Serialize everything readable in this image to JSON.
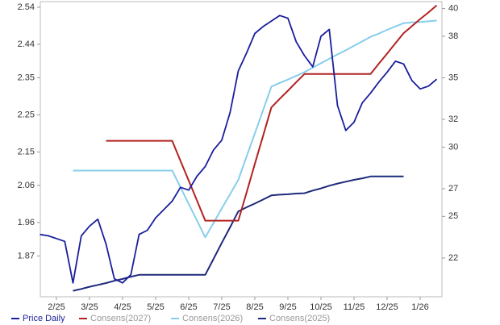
{
  "chart_data": {
    "type": "line",
    "categories": [
      null,
      null,
      "2/25",
      null,
      null,
      null,
      "3/25",
      null,
      null,
      null,
      "4/25",
      null,
      null,
      null,
      "5/25",
      null,
      null,
      null,
      "6/25",
      null,
      null,
      null,
      "7/25",
      null,
      null,
      null,
      "8/25",
      null,
      null,
      null,
      "9/25",
      null,
      null,
      null,
      "10/25",
      null,
      null,
      null,
      "11/25",
      null,
      null,
      null,
      "12/25",
      null,
      null,
      null,
      "1/26",
      null,
      null
    ],
    "series": [
      {
        "name": "Price Daily",
        "color": "#1a1f9c",
        "axis": "y2",
        "values": [
          23.7,
          23.6,
          23.4,
          23.2,
          20.2,
          23.6,
          24.3,
          24.8,
          23.0,
          20.5,
          20.2,
          20.8,
          23.7,
          24.0,
          24.9,
          25.5,
          26.1,
          27.1,
          26.9,
          27.9,
          28.6,
          29.8,
          30.5,
          32.5,
          35.5,
          36.8,
          38.2,
          38.7,
          39.1,
          39.5,
          39.3,
          37.6,
          36.6,
          35.8,
          38.0,
          38.5,
          33.0,
          31.2,
          31.8,
          33.2,
          33.9,
          34.7,
          35.4,
          36.2,
          36.0,
          34.8,
          34.2,
          34.4,
          34.9
        ]
      },
      {
        "name": "Consens(2027)",
        "color": "#b22222",
        "values": [
          null,
          null,
          null,
          null,
          null,
          null,
          null,
          null,
          2.18,
          2.18,
          2.18,
          2.18,
          2.18,
          2.18,
          2.18,
          2.18,
          2.18,
          2.126,
          2.073,
          2.019,
          1.965,
          1.965,
          1.965,
          1.965,
          1.965,
          2.041,
          2.118,
          2.194,
          2.27,
          2.293,
          2.315,
          2.338,
          2.36,
          2.36,
          2.36,
          2.36,
          2.36,
          2.36,
          2.36,
          2.36,
          2.36,
          2.388,
          2.415,
          2.443,
          2.47,
          2.489,
          2.508,
          2.526,
          2.545
        ]
      },
      {
        "name": "Consens(2026)",
        "color": "#87ceeb",
        "values": [
          null,
          null,
          null,
          null,
          2.1,
          2.1,
          2.1,
          2.1,
          2.1,
          2.1,
          2.1,
          2.1,
          2.1,
          2.1,
          2.1,
          2.1,
          2.1,
          2.055,
          2.01,
          1.965,
          1.92,
          1.959,
          1.998,
          2.036,
          2.075,
          2.138,
          2.2,
          2.263,
          2.326,
          2.336,
          2.345,
          2.355,
          2.365,
          2.377,
          2.389,
          2.401,
          2.413,
          2.424,
          2.436,
          2.448,
          2.46,
          2.469,
          2.479,
          2.488,
          2.497,
          2.499,
          2.5,
          2.502,
          2.504
        ]
      },
      {
        "name": "Consens(2025)",
        "color": "#1f2a7a",
        "values": [
          null,
          null,
          null,
          null,
          1.776,
          1.781,
          1.787,
          1.792,
          1.797,
          1.803,
          1.808,
          1.814,
          1.819,
          1.819,
          1.819,
          1.819,
          1.819,
          1.819,
          1.819,
          1.819,
          1.819,
          1.862,
          1.905,
          1.947,
          1.99,
          2.001,
          2.011,
          2.022,
          2.033,
          2.035,
          2.036,
          2.038,
          2.039,
          2.046,
          2.052,
          2.059,
          2.065,
          2.07,
          2.075,
          2.079,
          2.084,
          2.084,
          2.084,
          2.084,
          2.084,
          null,
          null,
          null,
          null
        ]
      }
    ],
    "ylim": [
      1.76,
      2.555
    ],
    "yticks": [
      1.87,
      1.96,
      2.06,
      2.15,
      2.25,
      2.35,
      2.44,
      2.54
    ],
    "y2lim": [
      19.2,
      40.5
    ],
    "y2ticks": [
      22,
      25,
      27,
      30,
      32,
      35,
      38,
      40
    ],
    "legend": "bottom"
  }
}
